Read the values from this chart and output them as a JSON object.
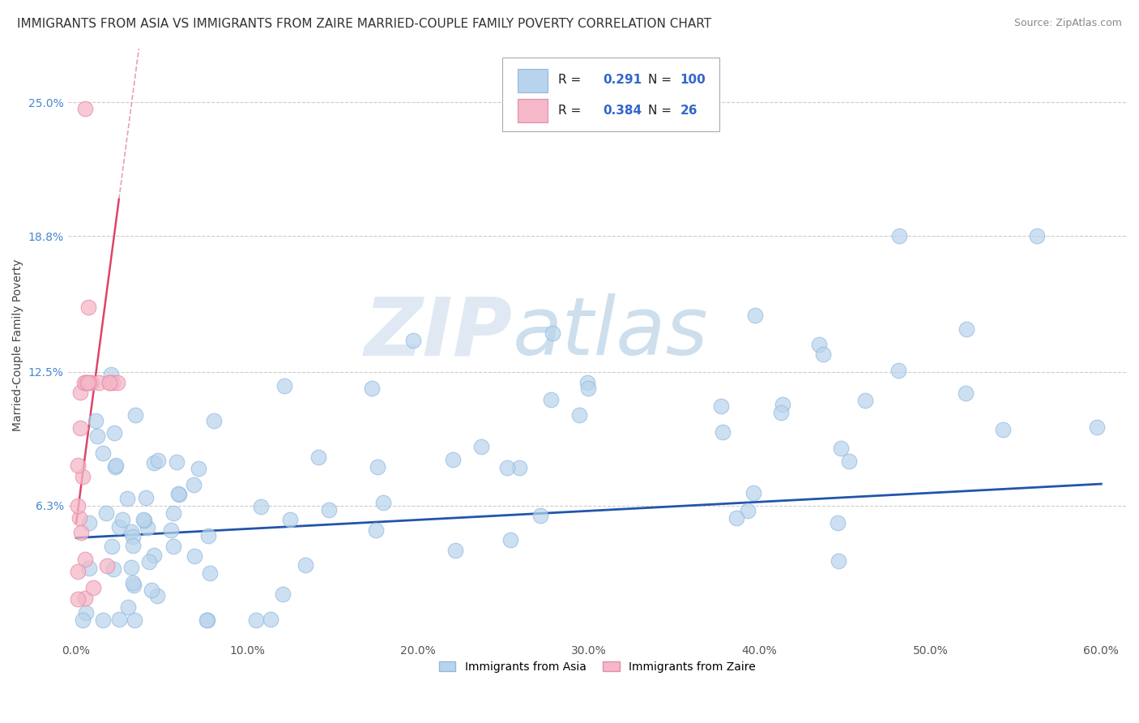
{
  "title": "IMMIGRANTS FROM ASIA VS IMMIGRANTS FROM ZAIRE MARRIED-COUPLE FAMILY POVERTY CORRELATION CHART",
  "source": "Source: ZipAtlas.com",
  "ylabel": "Married-Couple Family Poverty",
  "xlim": [
    -0.005,
    0.615
  ],
  "ylim": [
    0.0,
    0.275
  ],
  "yticks": [
    0.063,
    0.125,
    0.188,
    0.25
  ],
  "ytick_labels": [
    "6.3%",
    "12.5%",
    "18.8%",
    "25.0%"
  ],
  "xticks": [
    0.0,
    0.1,
    0.2,
    0.3,
    0.4,
    0.5,
    0.6
  ],
  "xtick_labels": [
    "0.0%",
    "10.0%",
    "20.0%",
    "30.0%",
    "40.0%",
    "50.0%",
    "60.0%"
  ],
  "grid_color": "#cccccc",
  "background_color": "#ffffff",
  "asia_color": "#b8d4ec",
  "asia_edge_color": "#90b8e0",
  "zaire_color": "#f4b8c8",
  "zaire_edge_color": "#e88aaa",
  "asia_line_color": "#2255aa",
  "zaire_line_color": "#dd4466",
  "zaire_dash_color": "#e8a0b0",
  "R_asia": 0.291,
  "N_asia": 100,
  "R_zaire": 0.384,
  "N_zaire": 26,
  "watermark_zip": "ZIP",
  "watermark_atlas": "atlas",
  "watermark_color_zip": "#c8d8e8",
  "watermark_color_atlas": "#a8c8e8",
  "legend_label_asia": "Immigrants from Asia",
  "legend_label_zaire": "Immigrants from Zaire",
  "title_fontsize": 11,
  "axis_label_fontsize": 10,
  "tick_fontsize": 10,
  "source_fontsize": 9
}
